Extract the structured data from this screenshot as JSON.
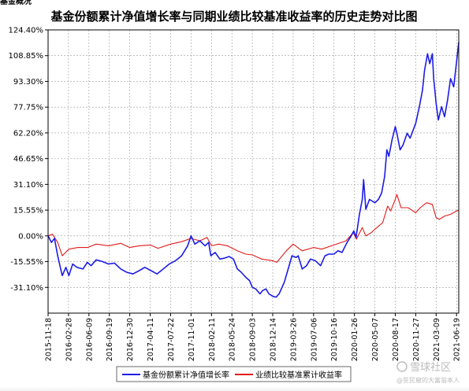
{
  "header_fragment": "基金概况",
  "watermark": {
    "brand": "雪球社区",
    "user": "@贫民窟的大富翁本人"
  },
  "colors": {
    "fund": "#1c1ce6",
    "benchmark": "#e01b1b",
    "grid": "#9a9a9a",
    "frame": "#000000"
  },
  "chart_data": {
    "type": "line",
    "title": "基金份额累计净值增长率与同期业绩比较基准收益率的历史走势对比图",
    "xlabel": "",
    "ylabel": "",
    "ylim": [
      -46.65,
      124.4
    ],
    "yticks": [
      "124.40%",
      "108.85%",
      "93.30%",
      "77.75%",
      "62.20%",
      "46.65%",
      "31.10%",
      "15.55%",
      "0.00%",
      "-15.55%",
      "-31.10%"
    ],
    "ytick_values": [
      124.4,
      108.85,
      93.3,
      77.75,
      62.2,
      46.65,
      31.1,
      15.55,
      0.0,
      -15.55,
      -31.1
    ],
    "xticks": [
      "2015-11-18",
      "2016-02-28",
      "2016-06-09",
      "2016-09-19",
      "2016-12-30",
      "2017-04-11",
      "2017-07-22",
      "2017-11-01",
      "2018-02-11",
      "2018-05-24",
      "2018-09-03",
      "2018-12-14",
      "2019-03-26",
      "2019-07-06",
      "2019-10-16",
      "2020-01-26",
      "2020-05-07",
      "2020-08-17",
      "2020-11-27",
      "2021-03-09",
      "2021-06-19"
    ],
    "xrange": [
      "2015-11-18",
      "2021-06-30"
    ],
    "grid": true,
    "legend_position": "bottom",
    "series": [
      {
        "name": "基金份额累计净值增长率",
        "color": "#1c1ce6",
        "points": [
          [
            "2015-11-18",
            0.0
          ],
          [
            "2015-12-05",
            -4.0
          ],
          [
            "2015-12-20",
            -1.5
          ],
          [
            "2016-01-05",
            -12.0
          ],
          [
            "2016-01-20",
            -20.0
          ],
          [
            "2016-01-28",
            -24.0
          ],
          [
            "2016-02-15",
            -19.0
          ],
          [
            "2016-03-01",
            -24.0
          ],
          [
            "2016-03-20",
            -17.0
          ],
          [
            "2016-04-10",
            -19.0
          ],
          [
            "2016-05-10",
            -20.0
          ],
          [
            "2016-06-01",
            -16.0
          ],
          [
            "2016-06-20",
            -18.0
          ],
          [
            "2016-07-15",
            -14.5
          ],
          [
            "2016-08-15",
            -15.5
          ],
          [
            "2016-09-15",
            -17.0
          ],
          [
            "2016-10-15",
            -16.5
          ],
          [
            "2016-11-15",
            -20.0
          ],
          [
            "2016-12-15",
            -22.0
          ],
          [
            "2017-01-15",
            -23.0
          ],
          [
            "2017-02-15",
            -21.0
          ],
          [
            "2017-03-15",
            -19.0
          ],
          [
            "2017-04-15",
            -21.0
          ],
          [
            "2017-05-15",
            -23.0
          ],
          [
            "2017-06-15",
            -20.0
          ],
          [
            "2017-07-15",
            -17.0
          ],
          [
            "2017-08-15",
            -15.0
          ],
          [
            "2017-09-15",
            -12.0
          ],
          [
            "2017-10-15",
            -6.0
          ],
          [
            "2017-11-01",
            0.0
          ],
          [
            "2017-11-20",
            -5.0
          ],
          [
            "2017-12-15",
            -3.0
          ],
          [
            "2018-01-10",
            -6.0
          ],
          [
            "2018-01-28",
            -4.0
          ],
          [
            "2018-02-08",
            -12.0
          ],
          [
            "2018-03-01",
            -10.0
          ],
          [
            "2018-03-25",
            -14.0
          ],
          [
            "2018-04-15",
            -13.5
          ],
          [
            "2018-05-10",
            -12.5
          ],
          [
            "2018-06-01",
            -14.0
          ],
          [
            "2018-06-20",
            -20.0
          ],
          [
            "2018-07-10",
            -22.0
          ],
          [
            "2018-08-01",
            -25.0
          ],
          [
            "2018-08-20",
            -27.0
          ],
          [
            "2018-09-03",
            -31.0
          ],
          [
            "2018-09-20",
            -32.0
          ],
          [
            "2018-10-11",
            -35.0
          ],
          [
            "2018-10-25",
            -33.0
          ],
          [
            "2018-11-10",
            -32.0
          ],
          [
            "2018-11-25",
            -35.0
          ],
          [
            "2018-12-14",
            -36.5
          ],
          [
            "2018-12-31",
            -37.0
          ],
          [
            "2019-01-15",
            -35.0
          ],
          [
            "2019-02-10",
            -28.0
          ],
          [
            "2019-03-01",
            -20.0
          ],
          [
            "2019-03-20",
            -12.0
          ],
          [
            "2019-04-10",
            -13.0
          ],
          [
            "2019-04-20",
            -12.0
          ],
          [
            "2019-05-10",
            -20.0
          ],
          [
            "2019-06-01",
            -18.0
          ],
          [
            "2019-06-20",
            -14.0
          ],
          [
            "2019-07-15",
            -15.0
          ],
          [
            "2019-08-10",
            -18.0
          ],
          [
            "2019-09-01",
            -12.0
          ],
          [
            "2019-09-20",
            -11.0
          ],
          [
            "2019-10-16",
            -11.0
          ],
          [
            "2019-11-05",
            -9.0
          ],
          [
            "2019-11-25",
            -10.0
          ],
          [
            "2019-12-20",
            -4.0
          ],
          [
            "2020-01-10",
            0.0
          ],
          [
            "2020-01-23",
            3.0
          ],
          [
            "2020-02-03",
            -1.0
          ],
          [
            "2020-02-20",
            13.0
          ],
          [
            "2020-03-05",
            22.0
          ],
          [
            "2020-03-12",
            34.0
          ],
          [
            "2020-03-23",
            16.0
          ],
          [
            "2020-04-10",
            22.0
          ],
          [
            "2020-05-07",
            20.0
          ],
          [
            "2020-05-25",
            22.0
          ],
          [
            "2020-06-10",
            26.0
          ],
          [
            "2020-06-25",
            36.0
          ],
          [
            "2020-07-06",
            52.0
          ],
          [
            "2020-07-16",
            48.0
          ],
          [
            "2020-08-01",
            58.0
          ],
          [
            "2020-08-17",
            66.0
          ],
          [
            "2020-08-25",
            62.0
          ],
          [
            "2020-09-10",
            52.0
          ],
          [
            "2020-09-25",
            55.0
          ],
          [
            "2020-10-15",
            62.0
          ],
          [
            "2020-10-30",
            59.0
          ],
          [
            "2020-11-27",
            68.0
          ],
          [
            "2020-12-15",
            78.0
          ],
          [
            "2020-12-31",
            88.0
          ],
          [
            "2021-01-10",
            100.0
          ],
          [
            "2021-01-25",
            110.0
          ],
          [
            "2021-02-05",
            104.0
          ],
          [
            "2021-02-18",
            110.0
          ],
          [
            "2021-02-25",
            95.0
          ],
          [
            "2021-03-09",
            80.0
          ],
          [
            "2021-03-20",
            70.0
          ],
          [
            "2021-04-05",
            78.0
          ],
          [
            "2021-04-20",
            72.0
          ],
          [
            "2021-05-05",
            82.0
          ],
          [
            "2021-05-20",
            95.0
          ],
          [
            "2021-06-05",
            90.0
          ],
          [
            "2021-06-19",
            105.0
          ],
          [
            "2021-06-30",
            117.0
          ]
        ]
      },
      {
        "name": "业绩比较基准累计收益率",
        "color": "#e01b1b",
        "points": [
          [
            "2015-11-18",
            0.0
          ],
          [
            "2015-12-10",
            1.0
          ],
          [
            "2016-01-05",
            -4.0
          ],
          [
            "2016-01-28",
            -12.0
          ],
          [
            "2016-03-01",
            -8.0
          ],
          [
            "2016-04-15",
            -7.0
          ],
          [
            "2016-06-01",
            -7.0
          ],
          [
            "2016-07-15",
            -5.0
          ],
          [
            "2016-09-15",
            -6.0
          ],
          [
            "2016-11-15",
            -4.5
          ],
          [
            "2016-12-30",
            -7.0
          ],
          [
            "2017-02-15",
            -6.0
          ],
          [
            "2017-04-11",
            -5.5
          ],
          [
            "2017-05-20",
            -7.5
          ],
          [
            "2017-07-22",
            -5.0
          ],
          [
            "2017-09-15",
            -3.5
          ],
          [
            "2017-11-01",
            -1.5
          ],
          [
            "2017-12-15",
            -3.0
          ],
          [
            "2018-01-20",
            -1.0
          ],
          [
            "2018-02-11",
            -6.0
          ],
          [
            "2018-03-20",
            -5.0
          ],
          [
            "2018-05-01",
            -6.0
          ],
          [
            "2018-06-20",
            -9.0
          ],
          [
            "2018-08-01",
            -11.0
          ],
          [
            "2018-09-03",
            -11.5
          ],
          [
            "2018-10-20",
            -14.0
          ],
          [
            "2018-12-14",
            -15.0
          ],
          [
            "2019-01-03",
            -16.0
          ],
          [
            "2019-02-20",
            -9.0
          ],
          [
            "2019-03-26",
            -5.0
          ],
          [
            "2019-05-10",
            -9.0
          ],
          [
            "2019-07-06",
            -7.0
          ],
          [
            "2019-08-15",
            -8.0
          ],
          [
            "2019-10-16",
            -5.5
          ],
          [
            "2019-12-15",
            -3.0
          ],
          [
            "2020-01-20",
            2.0
          ],
          [
            "2020-02-05",
            -2.0
          ],
          [
            "2020-03-05",
            5.0
          ],
          [
            "2020-03-23",
            0.0
          ],
          [
            "2020-04-20",
            2.0
          ],
          [
            "2020-05-07",
            4.0
          ],
          [
            "2020-06-15",
            8.0
          ],
          [
            "2020-07-10",
            18.0
          ],
          [
            "2020-07-25",
            15.0
          ],
          [
            "2020-08-17",
            22.0
          ],
          [
            "2020-08-25",
            25.0
          ],
          [
            "2020-09-15",
            17.0
          ],
          [
            "2020-10-20",
            17.0
          ],
          [
            "2020-11-27",
            14.0
          ],
          [
            "2020-12-20",
            17.0
          ],
          [
            "2021-01-20",
            20.0
          ],
          [
            "2021-02-18",
            19.0
          ],
          [
            "2021-03-09",
            11.0
          ],
          [
            "2021-03-25",
            10.0
          ],
          [
            "2021-04-20",
            12.0
          ],
          [
            "2021-05-20",
            13.0
          ],
          [
            "2021-06-19",
            15.0
          ],
          [
            "2021-06-30",
            15.5
          ]
        ]
      }
    ]
  }
}
